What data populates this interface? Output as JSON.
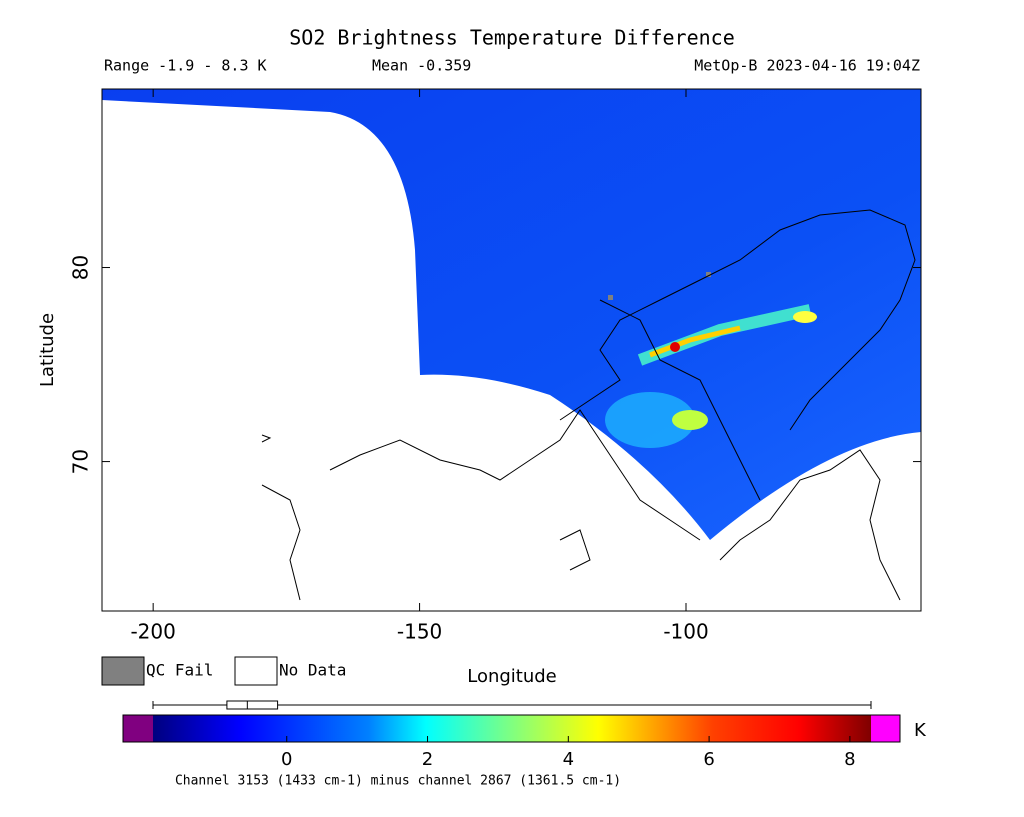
{
  "header": {
    "title": "SO2 Brightness Temperature Difference",
    "range": "Range -1.9 - 8.3 K",
    "mean": "Mean -0.359",
    "source": "MetOp-B 2023-04-16 19:04Z"
  },
  "map": {
    "xlabel": "Longitude",
    "ylabel": "Latitude",
    "xlim": [
      -209.6,
      -55.9
    ],
    "ylim": [
      62.3,
      89.2
    ],
    "xticks": [
      -200,
      -150,
      -100
    ],
    "yticks": [
      70,
      80
    ]
  },
  "legend": {
    "items": [
      {
        "label": "QC Fail",
        "color": "#808080"
      },
      {
        "label": "No Data",
        "color": "#ffffff"
      }
    ]
  },
  "colorbar": {
    "unit": "K",
    "clim": [
      -1.9,
      8.3
    ],
    "ticks": [
      0,
      2,
      4,
      6,
      8
    ],
    "under_color": "#800080",
    "over_color": "#ff00ff",
    "distribution": {
      "min": -1.9,
      "q1": -0.85,
      "median": -0.56,
      "q3": -0.13,
      "max": 8.3
    },
    "caption": "Channel 3153 (1433 cm-1) minus channel 2867 (1361.5 cm-1)"
  }
}
